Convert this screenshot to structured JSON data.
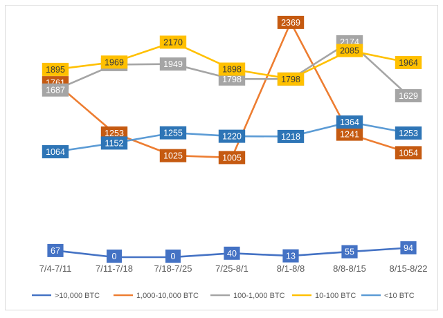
{
  "chart_data": {
    "type": "line",
    "title": "",
    "xlabel": "",
    "ylabel": "",
    "ylim": [
      0,
      2400
    ],
    "grid": false,
    "legend_position": "bottom",
    "categories": [
      "7/4-7/11",
      "7/11-7/18",
      "7/18-7/25",
      "7/25-8/1",
      "8/1-8/8",
      "8/8-8/15",
      "8/15-8/22"
    ],
    "series": [
      {
        "name": ">10,000 BTC",
        "color": "#4472c4",
        "label_bg": "#4472c4",
        "label_fg": "#ffffff",
        "values": [
          67,
          0,
          0,
          40,
          13,
          55,
          94
        ]
      },
      {
        "name": "1,000-10,000 BTC",
        "color": "#ed7d31",
        "label_bg": "#c55a11",
        "label_fg": "#ffffff",
        "values": [
          1761,
          1253,
          1025,
          1005,
          2369,
          1241,
          1054
        ]
      },
      {
        "name": "100-1,000 BTC",
        "color": "#a5a5a5",
        "label_bg": "#a5a5a5",
        "label_fg": "#ffffff",
        "values": [
          1687,
          1944,
          1949,
          1798,
          1798,
          2174,
          1629
        ]
      },
      {
        "name": "10-100 BTC",
        "color": "#ffc000",
        "label_bg": "#ffc000",
        "label_fg": "#3a3a3a",
        "values": [
          1895,
          1969,
          2170,
          1898,
          1798,
          2085,
          1964
        ]
      },
      {
        "name": "<10 BTC",
        "color": "#5b9bd5",
        "label_bg": "#2e75b6",
        "label_fg": "#ffffff",
        "values": [
          1064,
          1152,
          1255,
          1220,
          1218,
          1364,
          1253
        ]
      }
    ]
  }
}
